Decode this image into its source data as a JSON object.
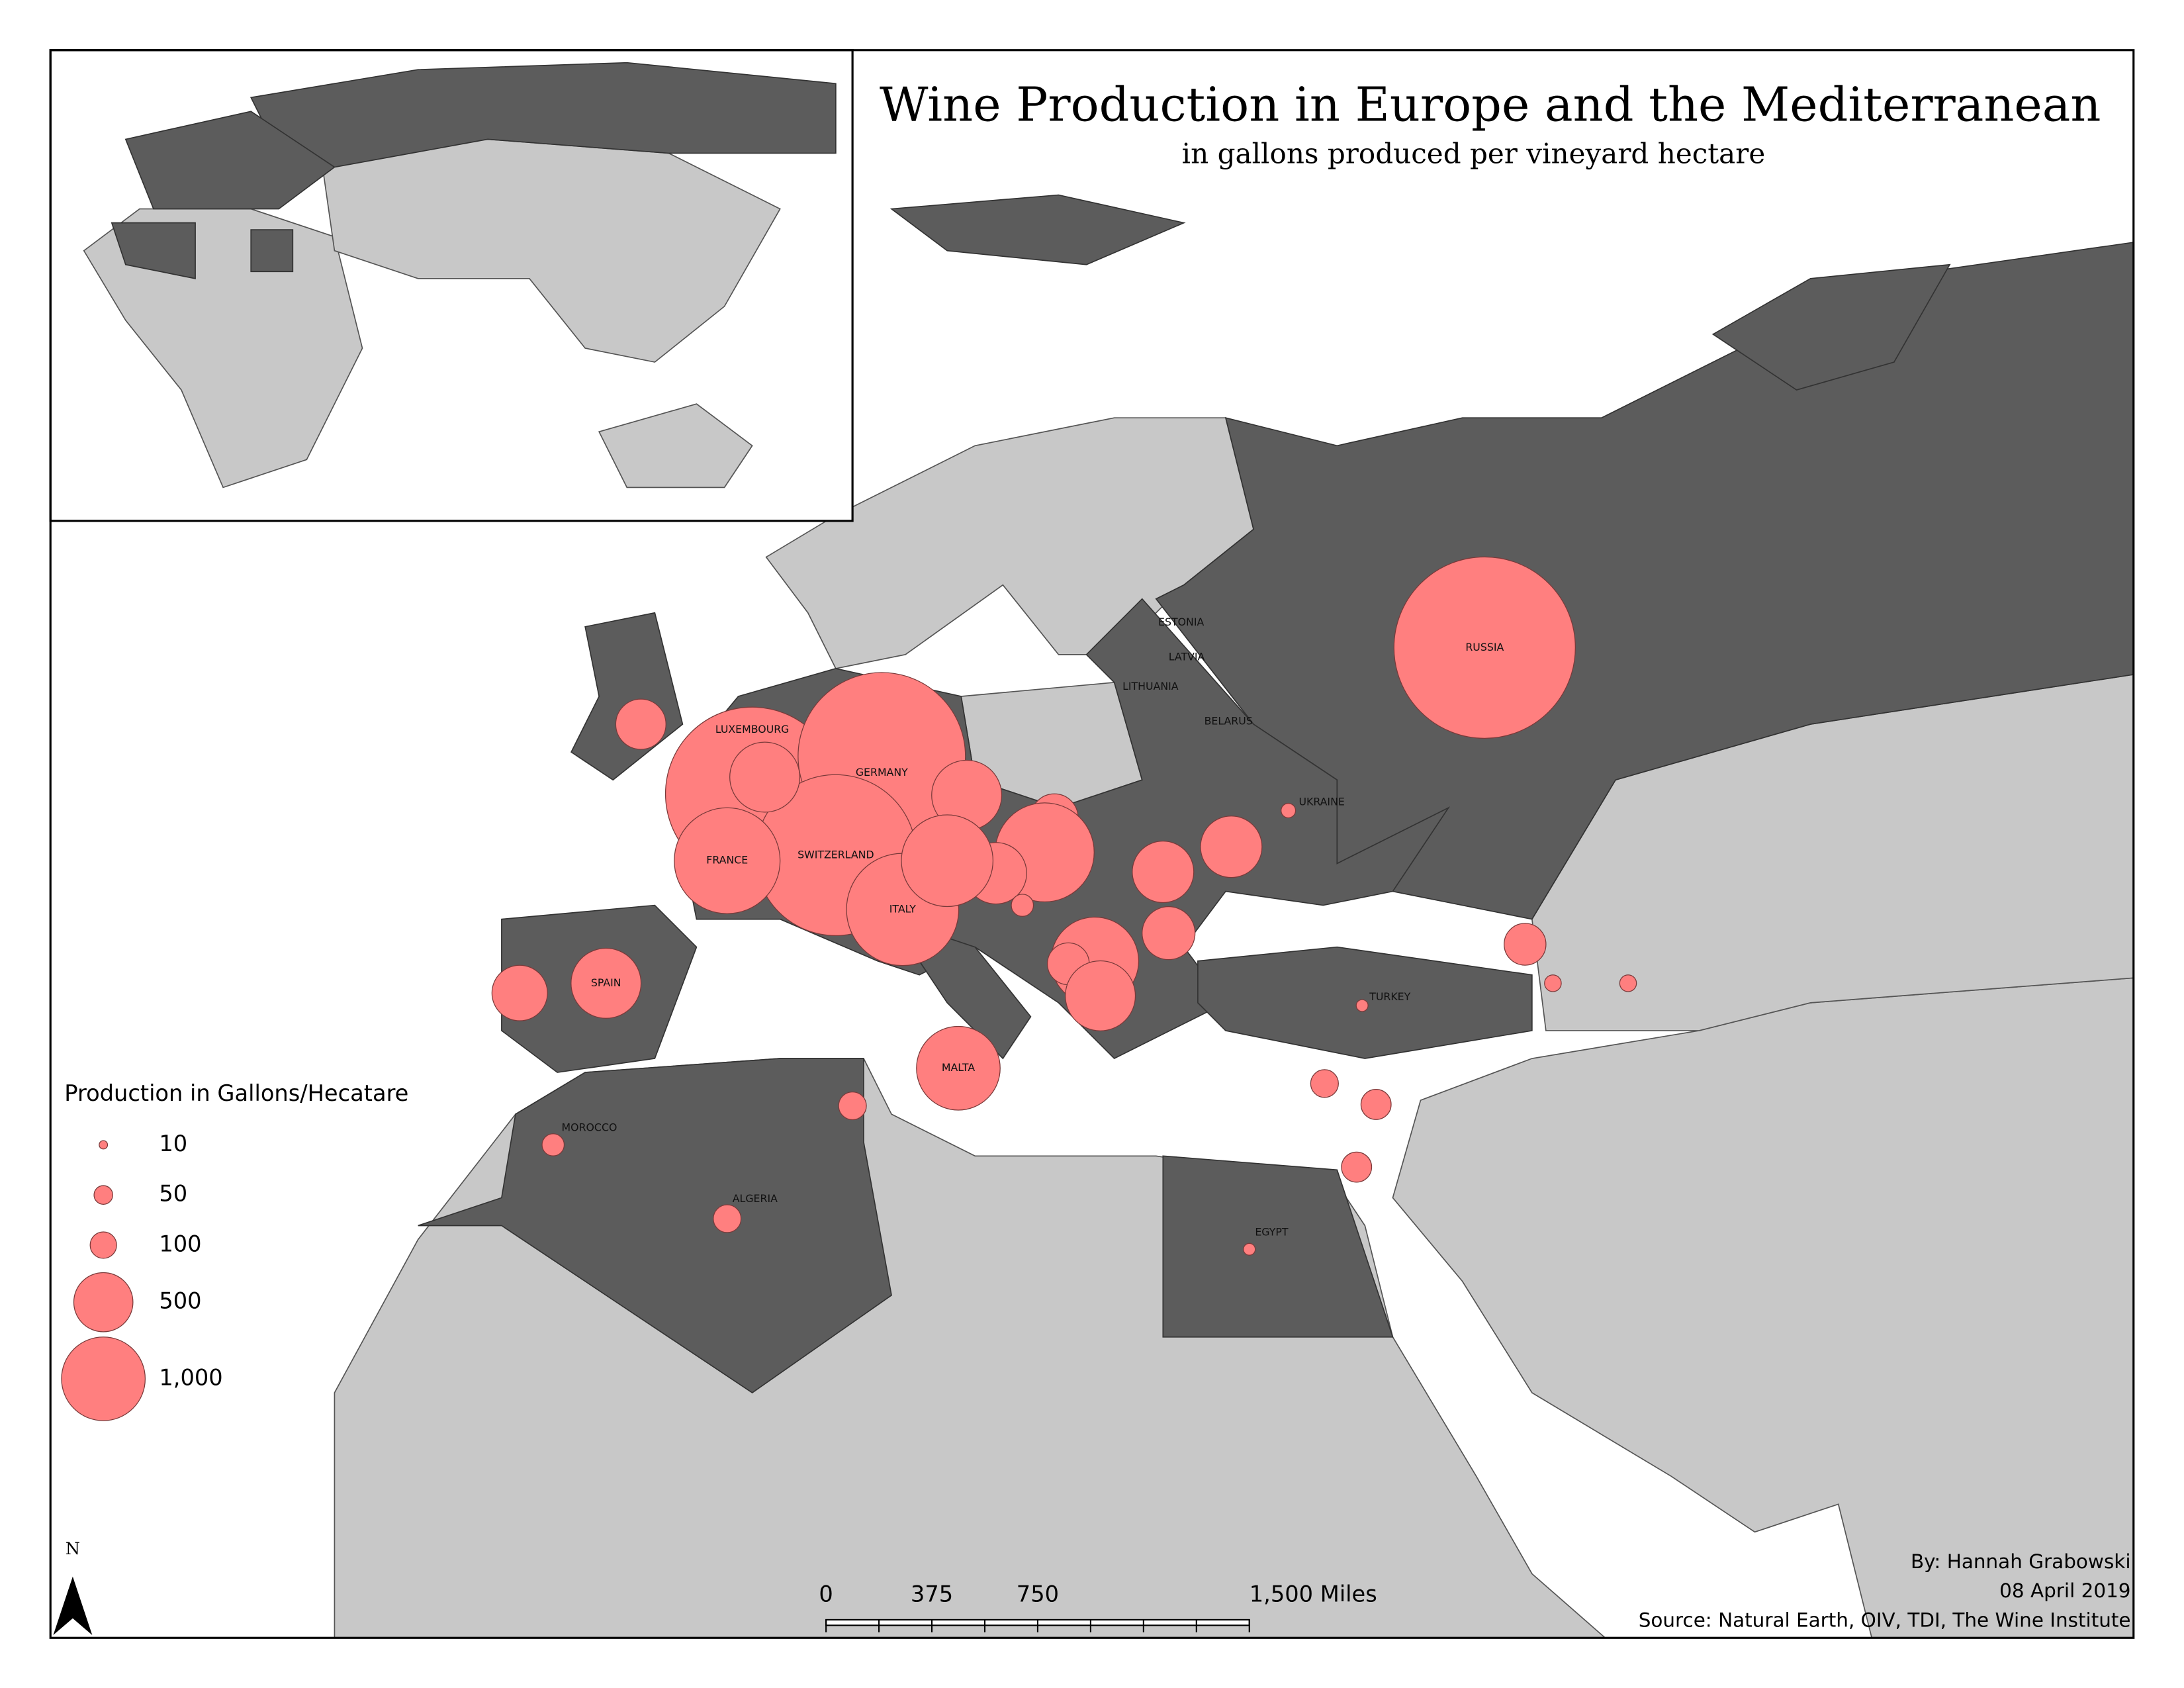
{
  "title": "Wine Production in Europe and the Mediterranean",
  "subtitle": "in gallons produced per vineyard hectare",
  "legend": {
    "title": "Production in Gallons/Hecatare",
    "items": [
      10,
      50,
      100,
      500,
      {
        "value": 1000,
        "label": "1,000"
      }
    ]
  },
  "bubbles": [
    {
      "label": "LUXEMBOURG",
      "value": 4300
    },
    {
      "label": "GERMANY",
      "value": 4000
    },
    {
      "label": "SWITZERLAND",
      "value": 3700
    },
    {
      "label": "FRANCE",
      "value": 1600
    },
    {
      "label": "ITALY",
      "value": 1800
    },
    {
      "label": "SPAIN",
      "value": 700
    },
    {
      "label": "MALTA",
      "value": 1000
    },
    {
      "label": "RUSSIA",
      "value": 4700
    },
    {
      "label": "UKRAINE",
      "value": 30
    },
    {
      "label": "TURKEY",
      "value": 20
    },
    {
      "label": "MOROCCO",
      "value": 70
    },
    {
      "label": "ALGERIA",
      "value": 110
    },
    {
      "label": "EGYPT",
      "value": 20
    },
    {
      "label": null,
      "value": 700
    },
    {
      "label": null,
      "value": 360
    },
    {
      "label": null,
      "value": 440
    },
    {
      "label": null,
      "value": 700
    },
    {
      "label": null,
      "value": 320
    },
    {
      "label": null,
      "value": 1400
    },
    {
      "label": null,
      "value": 540
    },
    {
      "label": null,
      "value": 1200
    },
    {
      "label": null,
      "value": 70
    },
    {
      "label": null,
      "value": 1100
    },
    {
      "label": null,
      "value": 250
    },
    {
      "label": null,
      "value": 700
    },
    {
      "label": null,
      "value": 540
    },
    {
      "label": null,
      "value": 540
    },
    {
      "label": null,
      "value": 400
    },
    {
      "label": null,
      "value": 250
    },
    {
      "label": null,
      "value": 40
    },
    {
      "label": null,
      "value": 40
    },
    {
      "label": null,
      "value": 110
    },
    {
      "label": null,
      "value": 130
    },
    {
      "label": null,
      "value": 130
    },
    {
      "label": null,
      "value": 110
    }
  ],
  "country_labels": [
    "ESTONIA",
    "LATVIA",
    "LITHUANIA",
    "BELARUS"
  ],
  "scale_bar": [
    "0",
    "375",
    "750",
    "1,500 Miles"
  ],
  "north": "N",
  "credits": {
    "author": "By: Hannah Grabowski",
    "date": "08 April 2019",
    "source": "Source: Natural Earth, OIV, TDI, The Wine Institute"
  }
}
